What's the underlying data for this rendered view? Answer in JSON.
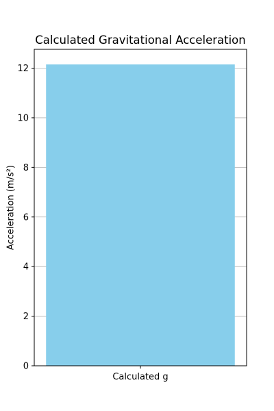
{
  "chart_data": {
    "type": "bar",
    "title": "Calculated Gravitational Acceleration",
    "xlabel": "",
    "ylabel": "Acceleration (m/s²)",
    "categories": [
      "Calculated g"
    ],
    "values": [
      12.15
    ],
    "ylim": [
      0,
      12.76
    ],
    "yticks": [
      0,
      2,
      4,
      6,
      8,
      10,
      12
    ],
    "grid": "y",
    "legend": "none",
    "bar_color": "#87ceeb",
    "grid_color": "#b0b0b0",
    "axis_color": "#000000"
  }
}
